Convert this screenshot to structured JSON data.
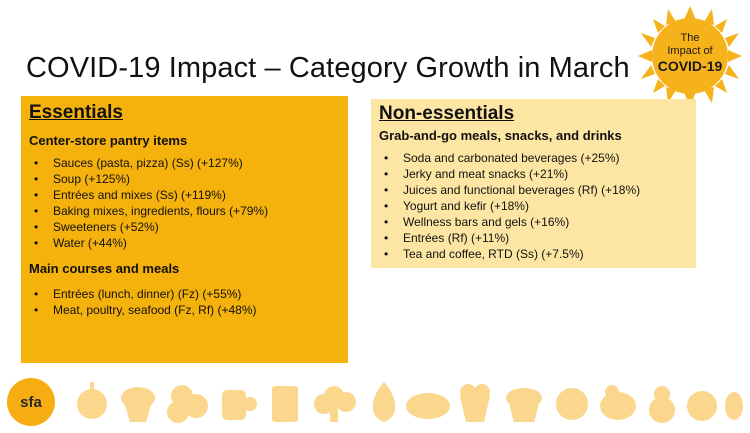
{
  "title": "COVID-19 Impact – Category Growth in March",
  "badge": {
    "line1": "The",
    "line2": "Impact of",
    "line3": "COVID-19",
    "color": "#f6b21a"
  },
  "essentials": {
    "heading": "Essentials",
    "groups": [
      {
        "label": "Center-store pantry items",
        "items": [
          "Sauces (pasta, pizza) (Ss) (+127%)",
          "Soup (+125%)",
          "Entrées and mixes (Ss) (+119%)",
          "Baking mixes, ingredients, flours (+79%)",
          "Sweeteners (+52%)",
          "Water (+44%)"
        ]
      },
      {
        "label": "Main courses and meals",
        "items": [
          "Entrées (lunch, dinner) (Fz) (+55%)",
          "Meat, poultry, seafood (Fz, Rf) (+48%)"
        ]
      }
    ],
    "color": "#f5b10c"
  },
  "non_essentials": {
    "heading": "Non-essentials",
    "groups": [
      {
        "label": "Grab-and-go meals, snacks, and drinks",
        "items": [
          "Soda and carbonated beverages (+25%)",
          "Jerky and meat snacks (+21%)",
          "Juices and functional beverages (Rf) (+18%)",
          "Yogurt and kefir (+18%)",
          "Wellness bars and gels (+16%)",
          "Entrées (Rf) (+11%)",
          "Tea and coffee, RTD (Ss) (+7.5%)"
        ]
      }
    ],
    "color": "#fde6a3"
  },
  "logo": {
    "text": "sfa",
    "color": "#f6ad12"
  },
  "food_icons": [
    "apple-icon",
    "cupcake-icon",
    "leafy-greens-icon",
    "coffee-mug-icon",
    "chocolate-bar-icon",
    "broccoli-icon",
    "flame-icon",
    "croissant-icon",
    "popcorn-icon",
    "basket-icon",
    "citrus-icon",
    "chicken-icon",
    "pear-icon",
    "tomato-icon",
    "lemon-icon"
  ]
}
